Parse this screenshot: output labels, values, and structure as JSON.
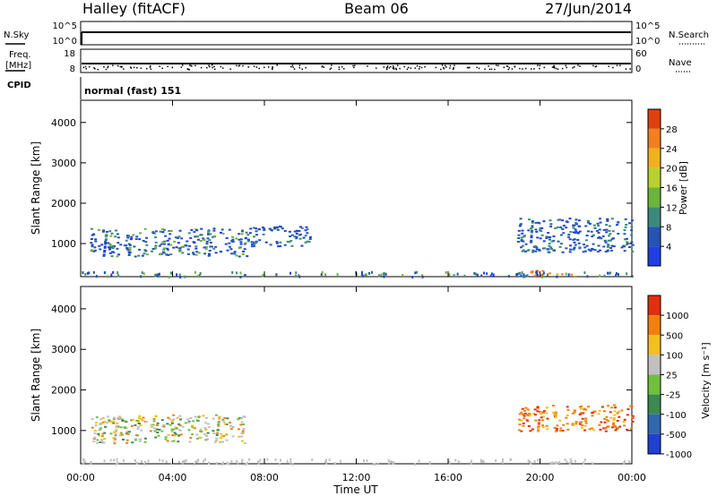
{
  "header": {
    "station": "Halley (fitACF)",
    "beam": "Beam 06",
    "date": "27/Jun/2014"
  },
  "top_panels": {
    "nsky_label": "N.Sky",
    "nsearch_label": "N.Search",
    "freq_label": "Freq.",
    "freq_unit": "[MHz]",
    "nave_label": "Nave",
    "cpid_label": "CPID",
    "cpid_value": "normal (fast) 151",
    "noise_left_ticks": [
      "10^5",
      "10^0"
    ],
    "noise_right_ticks": [
      "10^5",
      "10^0"
    ],
    "freq_left_ticks": [
      "18",
      "8"
    ],
    "nave_right_ticks": [
      "60",
      "0"
    ]
  },
  "chart_data": [
    {
      "type": "heatmap",
      "name": "power",
      "ylabel": "Slant Range [km]",
      "ylim": [
        180,
        4550
      ],
      "yticks": [
        "1000",
        "2000",
        "3000",
        "4000"
      ],
      "xlabel": "",
      "colorbar_label": "Power [dB]",
      "colorbar_ticks": [
        "4",
        "8",
        "12",
        "16",
        "20",
        "24",
        "28"
      ],
      "colorbar_colors": [
        "#1f3fe0",
        "#2555b0",
        "#3c8a7c",
        "#6cb43c",
        "#b8d030",
        "#f0b020",
        "#f08020",
        "#e04010"
      ],
      "scatter_regions": [
        {
          "x_range_hours": [
            0.4,
            7.2
          ],
          "range_km": [
            700,
            1400
          ],
          "dominant": "blue-green"
        },
        {
          "x_range_hours": [
            7.2,
            10.0
          ],
          "range_km": [
            950,
            1450
          ],
          "dominant": "blue"
        },
        {
          "x_range_hours": [
            19.0,
            24.0
          ],
          "range_km": [
            800,
            1650
          ],
          "dominant": "blue"
        },
        {
          "x_range_hours": [
            19.5,
            21.5
          ],
          "range_km": [
            200,
            350
          ],
          "dominant": "orange"
        }
      ]
    },
    {
      "type": "heatmap",
      "name": "velocity",
      "ylabel": "Slant Range [km]",
      "ylim": [
        180,
        4550
      ],
      "yticks": [
        "1000",
        "2000",
        "3000",
        "4000"
      ],
      "xlabel": "Time UT",
      "xticks": [
        "00:00",
        "04:00",
        "08:00",
        "12:00",
        "16:00",
        "20:00",
        "00:00"
      ],
      "xlim_hours": [
        0,
        24
      ],
      "colorbar_label": "Velocity [m s⁻¹]",
      "colorbar_ticks": [
        "1000",
        "500",
        "100",
        "25",
        "-25",
        "-100",
        "-500",
        "-1000"
      ],
      "colorbar_colors": [
        "#2040d0",
        "#3068b0",
        "#3c8a50",
        "#70c040",
        "#c0c0c0",
        "#f0c020",
        "#f08010",
        "#e03010"
      ],
      "scatter_regions": [
        {
          "x_range_hours": [
            0.4,
            7.2
          ],
          "range_km": [
            700,
            1400
          ],
          "dominant": "orange-green-grey"
        },
        {
          "x_range_hours": [
            19.0,
            24.0
          ],
          "range_km": [
            1000,
            1650
          ],
          "dominant": "orange"
        }
      ]
    }
  ]
}
